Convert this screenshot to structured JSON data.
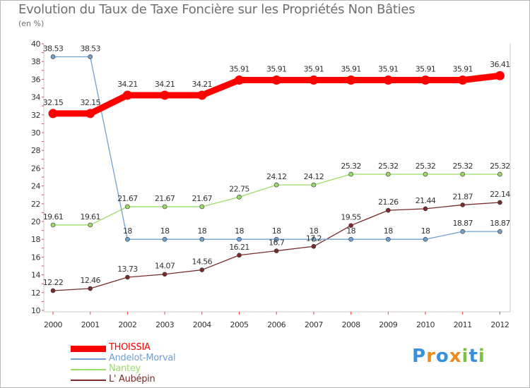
{
  "title": "Evolution du Taux de Taxe Foncière sur les Propriétés Non Bâties",
  "unit": "(en %)",
  "logo": {
    "letters": [
      "P",
      "r",
      "o",
      "x",
      "i",
      "t",
      "i"
    ],
    "colors": [
      "#3a8fd8",
      "#ee8a1e",
      "#3a8fd8",
      "#ee8a1e",
      "#7cc242",
      "#3a8fd8",
      "#7cc242"
    ]
  },
  "chart_data": {
    "type": "line",
    "title": "Evolution du Taux de Taxe Foncière sur les Propriétés Non Bâties",
    "ylabel": "(en %)",
    "xlabel": "",
    "x": [
      "2000",
      "2001",
      "2002",
      "2003",
      "2004",
      "2005",
      "2006",
      "2007",
      "2008",
      "2009",
      "2010",
      "2011",
      "2012"
    ],
    "ylim": [
      10,
      40
    ],
    "yticks": [
      "10",
      "12",
      "14",
      "16",
      "18",
      "20",
      "22",
      "24",
      "26",
      "28",
      "30",
      "32",
      "34",
      "36",
      "38",
      "40"
    ],
    "grid": false,
    "legend_position": "bottom-left",
    "series": [
      {
        "name": "THOISSIA",
        "color": "#ff0000",
        "thick": true,
        "values": [
          32.15,
          32.15,
          34.21,
          34.21,
          34.21,
          35.91,
          35.91,
          35.91,
          35.91,
          35.91,
          35.91,
          35.91,
          36.41
        ],
        "labels": [
          "32.15",
          "32.15",
          "34.21",
          "34.21",
          "34.21",
          "35.91",
          "35.91",
          "35.91",
          "35.91",
          "35.91",
          "35.91",
          "35.91",
          "36.41"
        ]
      },
      {
        "name": "Andelot-Morval",
        "color": "#6fa0d0",
        "values": [
          38.53,
          38.53,
          18,
          18,
          18,
          18,
          18,
          18,
          18,
          18,
          18,
          18.87,
          18.87
        ],
        "labels": [
          "38.53",
          "38.53",
          "18",
          "18",
          "18",
          "18",
          "18",
          "18",
          "18",
          "18",
          "18",
          "18.87",
          "18.87"
        ]
      },
      {
        "name": "Nantey",
        "color": "#99dd66",
        "values": [
          19.61,
          19.61,
          21.67,
          21.67,
          21.67,
          22.75,
          24.12,
          24.12,
          25.32,
          25.32,
          25.32,
          25.32,
          25.32
        ],
        "labels": [
          "19.61",
          "19.61",
          "21.67",
          "21.67",
          "21.67",
          "22.75",
          "24.12",
          "24.12",
          "25.32",
          "25.32",
          "25.32",
          "25.32",
          "25.32"
        ]
      },
      {
        "name": "L' Aubépin",
        "color": "#7a2a2a",
        "values": [
          12.22,
          12.46,
          13.73,
          14.07,
          14.56,
          16.21,
          16.7,
          17.2,
          19.55,
          21.26,
          21.44,
          21.87,
          22.14
        ],
        "labels": [
          "12.22",
          "12.46",
          "13.73",
          "14.07",
          "14.56",
          "16.21",
          "16.7",
          "17.2",
          "19.55",
          "21.26",
          "21.44",
          "21.87",
          "22.14"
        ]
      }
    ]
  }
}
